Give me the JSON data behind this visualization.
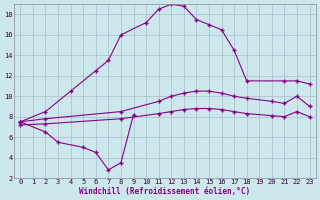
{
  "xlabel": "Windchill (Refroidissement éolien,°C)",
  "bg_color": "#cce8ec",
  "line_color": "#880088",
  "grid_color": "#aabbcc",
  "xlim": [
    -0.5,
    23.5
  ],
  "ylim": [
    2,
    19
  ],
  "xticks": [
    0,
    1,
    2,
    3,
    4,
    5,
    6,
    7,
    8,
    9,
    10,
    11,
    12,
    13,
    14,
    15,
    16,
    17,
    18,
    19,
    20,
    21,
    22,
    23
  ],
  "yticks": [
    2,
    4,
    6,
    8,
    10,
    12,
    14,
    16,
    18
  ],
  "series": [
    {
      "x": [
        0,
        2,
        4,
        6,
        7,
        8,
        10,
        11,
        12,
        13,
        14,
        15,
        16,
        17,
        18,
        21,
        22,
        23
      ],
      "y": [
        7.5,
        8.5,
        10.5,
        12.5,
        13.5,
        16.0,
        17.2,
        18.5,
        19.0,
        18.8,
        17.5,
        17.0,
        16.5,
        14.5,
        11.5,
        11.5,
        11.5,
        11.2
      ]
    },
    {
      "x": [
        0,
        2,
        8,
        11,
        12,
        13,
        14,
        15,
        16,
        17,
        18,
        20,
        21,
        22,
        23
      ],
      "y": [
        7.5,
        7.8,
        8.5,
        9.5,
        10.0,
        10.3,
        10.5,
        10.5,
        10.3,
        10.0,
        9.8,
        9.5,
        9.3,
        10.0,
        9.0
      ]
    },
    {
      "x": [
        0,
        2,
        8,
        11,
        12,
        13,
        14,
        15,
        16,
        17,
        18,
        20,
        21,
        22,
        23
      ],
      "y": [
        7.2,
        7.3,
        7.8,
        8.3,
        8.5,
        8.7,
        8.8,
        8.8,
        8.7,
        8.5,
        8.3,
        8.1,
        8.0,
        8.5,
        8.0
      ]
    },
    {
      "x": [
        0,
        2,
        3,
        5,
        6,
        7,
        8,
        9
      ],
      "y": [
        7.5,
        6.5,
        5.5,
        5.0,
        4.5,
        2.8,
        3.5,
        8.2
      ]
    }
  ]
}
